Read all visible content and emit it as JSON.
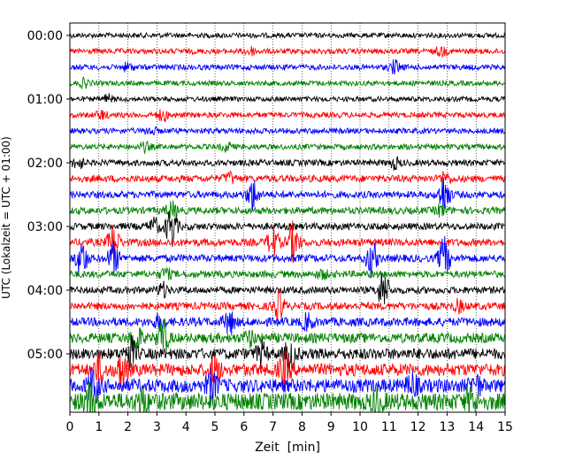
{
  "chart_data": {
    "type": "line",
    "title": "",
    "xlabel": "Zeit  [min]",
    "ylabel": "UTC (Lokalzeit = UTC + 01:00)",
    "xlim": [
      0,
      15
    ],
    "x_ticks": [
      "0",
      "1",
      "2",
      "3",
      "4",
      "5",
      "6",
      "7",
      "8",
      "9",
      "10",
      "11",
      "12",
      "13",
      "14",
      "15"
    ],
    "y_ticks": [
      "00:00",
      "01:00",
      "02:00",
      "03:00",
      "04:00",
      "05:00"
    ],
    "trace_interval_min": 15,
    "trace_colors": [
      "#000000",
      "#ff0000",
      "#0000ff",
      "#008000"
    ],
    "traces": [
      {
        "start": "00:00",
        "color": "#000000",
        "amp": 0.2,
        "events": []
      },
      {
        "start": "00:15",
        "color": "#ff0000",
        "amp": 0.22,
        "events": [
          [
            6.2,
            0.3
          ],
          [
            12.8,
            0.3
          ]
        ]
      },
      {
        "start": "00:30",
        "color": "#0000ff",
        "amp": 0.22,
        "events": [
          [
            11.2,
            0.5
          ],
          [
            2.0,
            0.3
          ]
        ]
      },
      {
        "start": "00:45",
        "color": "#008000",
        "amp": 0.2,
        "events": [
          [
            0.5,
            0.3
          ]
        ]
      },
      {
        "start": "01:00",
        "color": "#000000",
        "amp": 0.2,
        "events": [
          [
            1.3,
            0.3
          ]
        ]
      },
      {
        "start": "01:15",
        "color": "#ff0000",
        "amp": 0.22,
        "events": [
          [
            3.2,
            0.4
          ],
          [
            1.1,
            0.3
          ]
        ]
      },
      {
        "start": "01:30",
        "color": "#0000ff",
        "amp": 0.22,
        "events": [
          [
            2.8,
            0.3
          ]
        ]
      },
      {
        "start": "01:45",
        "color": "#008000",
        "amp": 0.22,
        "events": [
          [
            2.6,
            0.3
          ],
          [
            5.4,
            0.3
          ]
        ]
      },
      {
        "start": "02:00",
        "color": "#000000",
        "amp": 0.25,
        "events": [
          [
            0.3,
            0.4
          ],
          [
            11.2,
            0.4
          ]
        ]
      },
      {
        "start": "02:15",
        "color": "#ff0000",
        "amp": 0.28,
        "events": [
          [
            5.5,
            0.4
          ],
          [
            12.9,
            0.5
          ]
        ]
      },
      {
        "start": "02:30",
        "color": "#0000ff",
        "amp": 0.28,
        "events": [
          [
            6.3,
            1.2
          ],
          [
            12.9,
            1.5
          ]
        ]
      },
      {
        "start": "02:45",
        "color": "#008000",
        "amp": 0.28,
        "events": [
          [
            3.5,
            0.6
          ],
          [
            12.8,
            0.4
          ]
        ]
      },
      {
        "start": "03:00",
        "color": "#000000",
        "amp": 0.28,
        "events": [
          [
            3.5,
            1.6
          ],
          [
            2.9,
            0.6
          ]
        ]
      },
      {
        "start": "03:15",
        "color": "#ff0000",
        "amp": 0.3,
        "events": [
          [
            1.5,
            1.4
          ],
          [
            7.0,
            1.2
          ],
          [
            7.7,
            1.5
          ]
        ]
      },
      {
        "start": "03:30",
        "color": "#0000ff",
        "amp": 0.3,
        "events": [
          [
            0.4,
            1.5
          ],
          [
            1.5,
            1.2
          ],
          [
            10.4,
            1.4
          ],
          [
            12.9,
            1.6
          ]
        ]
      },
      {
        "start": "03:45",
        "color": "#008000",
        "amp": 0.28,
        "events": [
          [
            3.3,
            0.4
          ],
          [
            8.7,
            0.3
          ]
        ]
      },
      {
        "start": "04:00",
        "color": "#000000",
        "amp": 0.28,
        "events": [
          [
            10.8,
            1.5
          ],
          [
            3.2,
            0.5
          ]
        ]
      },
      {
        "start": "04:15",
        "color": "#ff0000",
        "amp": 0.3,
        "events": [
          [
            7.2,
            1.1
          ],
          [
            13.4,
            0.4
          ]
        ]
      },
      {
        "start": "04:30",
        "color": "#0000ff",
        "amp": 0.35,
        "events": [
          [
            5.5,
            0.9
          ],
          [
            8.2,
            0.6
          ],
          [
            3.1,
            0.5
          ]
        ]
      },
      {
        "start": "04:45",
        "color": "#008000",
        "amp": 0.4,
        "events": [
          [
            3.2,
            1.4
          ],
          [
            2.3,
            0.9
          ],
          [
            6.2,
            0.5
          ]
        ]
      },
      {
        "start": "05:00",
        "color": "#000000",
        "amp": 0.45,
        "events": [
          [
            2.1,
            1.2
          ],
          [
            7.6,
            1.2
          ],
          [
            6.6,
            0.8
          ]
        ]
      },
      {
        "start": "05:15",
        "color": "#ff0000",
        "amp": 0.5,
        "events": [
          [
            1.8,
            1.4
          ],
          [
            7.4,
            1.2
          ],
          [
            5.0,
            0.9
          ],
          [
            1.0,
            1.0
          ]
        ]
      },
      {
        "start": "05:30",
        "color": "#0000ff",
        "amp": 0.55,
        "events": [
          [
            0.8,
            1.3
          ],
          [
            4.9,
            1.1
          ],
          [
            11.8,
            0.8
          ],
          [
            14.0,
            0.7
          ]
        ]
      },
      {
        "start": "05:45",
        "color": "#008000",
        "amp": 0.7,
        "events": [
          [
            0.7,
            1.3
          ],
          [
            2.5,
            0.9
          ],
          [
            10.6,
            0.8
          ],
          [
            13.8,
            0.8
          ]
        ]
      }
    ],
    "grid": "vertical dotted"
  }
}
